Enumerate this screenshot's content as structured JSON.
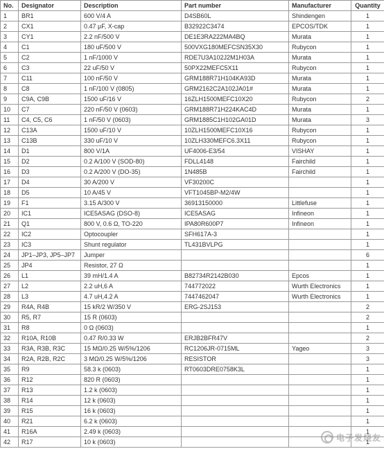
{
  "table": {
    "headers": [
      "No.",
      "Designator",
      "Description",
      "Part number",
      "Manufacturer",
      "Quantity"
    ],
    "rows": [
      [
        "1",
        "BR1",
        "600 V/4 A",
        "D4SB60L",
        "Shindengen",
        "1"
      ],
      [
        "2",
        "CX1",
        "0.47 μF, X-cap",
        "B32922C3474",
        "EPCOS/TDK",
        "1"
      ],
      [
        "3",
        "CY1",
        "2.2 nF/500 V",
        "DE1E3RA222MA4BQ",
        "Murata",
        "1"
      ],
      [
        "4",
        "C1",
        "180 uF/500 V",
        "500VXG180MEFCSN35X30",
        "Rubycon",
        "1"
      ],
      [
        "5",
        "C2",
        "1 nF/1000 V",
        "RDE7U3A102J2M1H03A",
        "Murata",
        "1"
      ],
      [
        "6",
        "C3",
        "22 uF/50 V",
        "50PX22MEFC5X11",
        "Rubycon",
        "1"
      ],
      [
        "7",
        "C11",
        "100 nF/50 V",
        "GRM188R71H104KA93D",
        "Murata",
        "1"
      ],
      [
        "8",
        "C8",
        "1 nF/100 V (0805)",
        "GRM2162C2A102JA01#",
        "Murata",
        "1"
      ],
      [
        "9",
        "C9A, C9B",
        "1500 uF/16 V",
        "16ZLH1500MEFC10X20",
        "Rubycon",
        "2"
      ],
      [
        "10",
        "C7",
        "220 nF/50 V (0603)",
        "GRM188R71H224KAC4D",
        "Murata",
        "1"
      ],
      [
        "11",
        "C4, C5, C6",
        "1 nF/50 V (0603)",
        "GRM1885C1H102GA01D",
        "Murata",
        "3"
      ],
      [
        "12",
        "C13A",
        "1500 uF/10 V",
        "10ZLH1500MEFC10X16",
        "Rubycon",
        "1"
      ],
      [
        "13",
        "C13B",
        "330 uF/10 V",
        "10ZLH330MEFC6.3X11",
        "Rubycon",
        "1"
      ],
      [
        "14",
        "D1",
        "800 V/1A",
        "UF4006-E3/54",
        "VISHAY",
        "1"
      ],
      [
        "15",
        "D2",
        "0.2 A/100 V (SOD-80)",
        "FDLL4148",
        "Fairchild",
        "1"
      ],
      [
        "16",
        "D3",
        "0.2 A/200 V (DO-35)",
        "1N485B",
        "Fairchild",
        "1"
      ],
      [
        "17",
        "D4",
        "30 A/200 V",
        "VF30200C",
        "",
        "1"
      ],
      [
        "18",
        "D5",
        "10 A/45 V",
        "VFT1045BP-M2/4W",
        "",
        "1"
      ],
      [
        "19",
        "F1",
        "3.15 A/300 V",
        "36913150000",
        "Littlefuse",
        "1"
      ],
      [
        "20",
        "IC1",
        "ICE5ASAG (DSO-8)",
        "ICE5ASAG",
        "Infineon",
        "1"
      ],
      [
        "21",
        "Q1",
        "800 V, 0.6 Ω, TO-220",
        "IPA80R600P7",
        "Infineon",
        "1"
      ],
      [
        "22",
        "IC2",
        "Optocoupler",
        "SFH617A-3",
        "",
        "1"
      ],
      [
        "23",
        "IC3",
        "Shunt regulator",
        "TL431BVLPG",
        "",
        "1"
      ],
      [
        "24",
        "JP1–JP3, JP5–JP7",
        "Jumper",
        "",
        "",
        "6"
      ],
      [
        "25",
        "JP4",
        "Resistor, 27 Ω",
        "",
        "",
        "1"
      ],
      [
        "26",
        "L1",
        "39 mH/1.4 A",
        "B82734R2142B030",
        "Epcos",
        "1"
      ],
      [
        "27",
        "L2",
        "2.2 uH,6 A",
        "744772022",
        "Wurth Electronics",
        "1"
      ],
      [
        "28",
        "L3",
        "4.7 uH,4.2 A",
        "7447462047",
        "Wurth Electronics",
        "1"
      ],
      [
        "29",
        "R4A, R4B",
        "15 kR/2 W/350 V",
        "ERG-2SJ153",
        "",
        "2"
      ],
      [
        "30",
        "R5, R7",
        "15 R (0603)",
        "",
        "",
        "2"
      ],
      [
        "31",
        "R8",
        "0 Ω (0603)",
        "",
        "",
        "1"
      ],
      [
        "32",
        "R10A, R10B",
        "0.47 R/0.33 W",
        "ERJB2BFR47V",
        "",
        "2"
      ],
      [
        "33",
        "R3A, R3B, R3C",
        "15 MΩ/0.25 W/5%/1206",
        "RC1206JR-0715ML",
        "Yageo",
        "3"
      ],
      [
        "34",
        "R2A, R2B, R2C",
        "3 MΩ/0.25 W/5%/1206",
        "RESISTOR",
        "",
        "3"
      ],
      [
        "35",
        "R9",
        "58.3 k (0603)",
        "RT0603DRE0758K3L",
        "",
        "1"
      ],
      [
        "36",
        "R12",
        "820 R (0603)",
        "",
        "",
        "1"
      ],
      [
        "37",
        "R13",
        "1.2 k (0603)",
        "",
        "",
        "1"
      ],
      [
        "38",
        "R14",
        "12 k (0603)",
        "",
        "",
        "1"
      ],
      [
        "39",
        "R15",
        "16 k (0603)",
        "",
        "",
        "1"
      ],
      [
        "40",
        "R21",
        "6.2 k (0603)",
        "",
        "",
        "1"
      ],
      [
        "41",
        "R16A",
        "2.49 k (0603)",
        "",
        "",
        "1"
      ],
      [
        "42",
        "R17",
        "10 k (0603)",
        "",
        "",
        "1"
      ]
    ]
  },
  "watermark": {
    "text": "电子发烧友"
  }
}
